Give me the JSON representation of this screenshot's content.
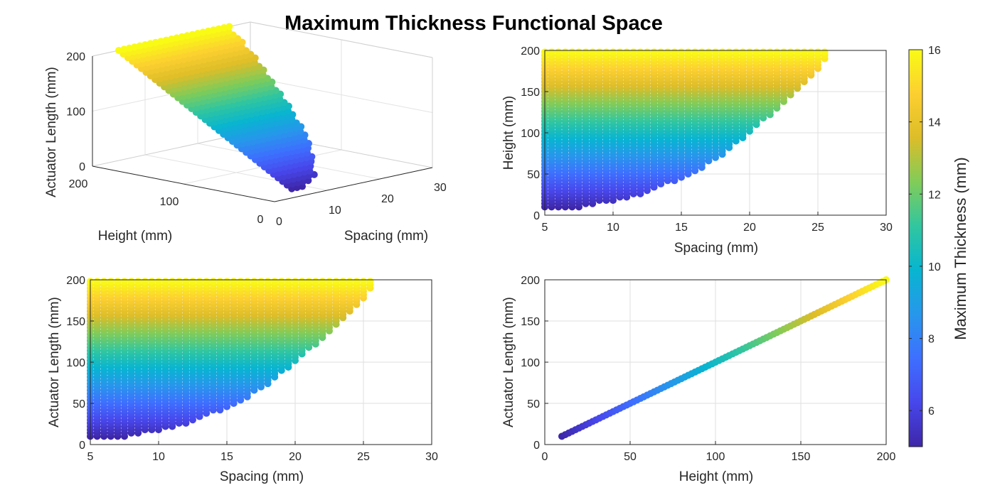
{
  "figure_title": "Maximum Thickness Functional Space",
  "chart_data": [
    {
      "type": "scatter",
      "view": "3d",
      "xlabel": "Spacing (mm)",
      "ylabel": "Height (mm)",
      "zlabel": "Actuator Length (mm)",
      "xlim": [
        0,
        30
      ],
      "ylim": [
        0,
        200
      ],
      "zlim": [
        0,
        200
      ],
      "xticks": [
        "0",
        "10",
        "20",
        "30"
      ],
      "yticks": [
        "0",
        "100",
        "200"
      ],
      "zticks": [
        "0",
        "100",
        "200"
      ],
      "grid": true,
      "color_variable": "Maximum Thickness (mm)",
      "relation": "Actuator Length equals Height; minimum Spacing 5 mm; maximum Spacing grows from about 7 mm at Height 10 to about 26 mm at Height 200"
    },
    {
      "type": "scatter",
      "xlabel": "Spacing (mm)",
      "ylabel": "Height (mm)",
      "xlim": [
        5,
        30
      ],
      "ylim": [
        0,
        200
      ],
      "xticks": [
        "5",
        "10",
        "15",
        "20",
        "25",
        "30"
      ],
      "yticks": [
        "0",
        "50",
        "100",
        "150",
        "200"
      ],
      "grid": true,
      "boundary_max_spacing": {
        "height": [
          10,
          20,
          40,
          60,
          80,
          100,
          120,
          140,
          160,
          180,
          200
        ],
        "spacing": [
          7.5,
          11,
          14.3,
          16.8,
          18.5,
          20,
          21.4,
          22.7,
          24,
          25.1,
          26
        ]
      },
      "min_spacing": 5,
      "height_range": [
        10,
        200
      ]
    },
    {
      "type": "scatter",
      "xlabel": "Spacing (mm)",
      "ylabel": "Actuator Length (mm)",
      "xlim": [
        5,
        30
      ],
      "ylim": [
        0,
        200
      ],
      "xticks": [
        "5",
        "10",
        "15",
        "20",
        "25",
        "30"
      ],
      "yticks": [
        "0",
        "50",
        "100",
        "150",
        "200"
      ],
      "grid": true,
      "boundary_max_spacing": {
        "length": [
          10,
          20,
          40,
          60,
          80,
          100,
          120,
          140,
          160,
          180,
          200
        ],
        "spacing": [
          7.5,
          11,
          14.3,
          16.8,
          18.5,
          20,
          21.4,
          22.7,
          24,
          25.1,
          26
        ]
      },
      "min_spacing": 5,
      "length_range": [
        10,
        200
      ]
    },
    {
      "type": "scatter",
      "xlabel": "Height (mm)",
      "ylabel": "Actuator Length (mm)",
      "xlim": [
        0,
        200
      ],
      "ylim": [
        0,
        200
      ],
      "xticks": [
        "0",
        "50",
        "100",
        "150",
        "200"
      ],
      "yticks": [
        "0",
        "50",
        "100",
        "150",
        "200"
      ],
      "grid": true,
      "x": [
        10,
        200
      ],
      "y": [
        10,
        200
      ]
    }
  ],
  "colorbar": {
    "label": "Maximum Thickness (mm)",
    "colormap": "parula",
    "range": [
      5,
      16
    ],
    "ticks": [
      "6",
      "8",
      "10",
      "12",
      "14",
      "16"
    ],
    "tick_values": [
      6,
      8,
      10,
      12,
      14,
      16
    ],
    "thickness_at_length": {
      "length": [
        10,
        200
      ],
      "thickness": [
        5,
        16
      ]
    }
  }
}
